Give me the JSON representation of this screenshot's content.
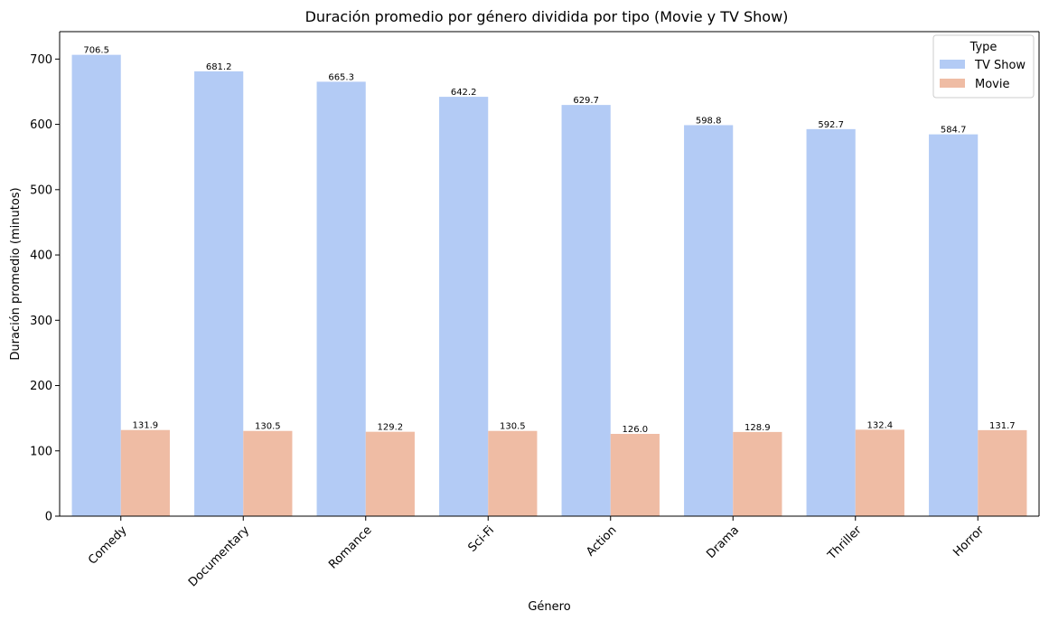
{
  "chart_data": {
    "type": "bar",
    "title": "Duración promedio por género dividida por tipo (Movie y TV Show)",
    "xlabel": "Género",
    "ylabel": "Duración promedio (minutos)",
    "categories": [
      "Comedy",
      "Documentary",
      "Romance",
      "Sci-Fi",
      "Action",
      "Drama",
      "Thriller",
      "Horror"
    ],
    "series": [
      {
        "name": "TV Show",
        "color": "#b3cbf5",
        "values": [
          706.5,
          681.2,
          665.3,
          642.2,
          629.7,
          598.8,
          592.7,
          584.7
        ]
      },
      {
        "name": "Movie",
        "color": "#efbca4",
        "values": [
          131.9,
          130.5,
          129.2,
          130.5,
          126.0,
          128.9,
          132.4,
          131.7
        ]
      }
    ],
    "ylim": [
      0,
      742
    ],
    "yticks": [
      0,
      100,
      200,
      300,
      400,
      500,
      600,
      700
    ],
    "legend": {
      "title": "Type",
      "position": "top-right"
    },
    "grid": false
  }
}
